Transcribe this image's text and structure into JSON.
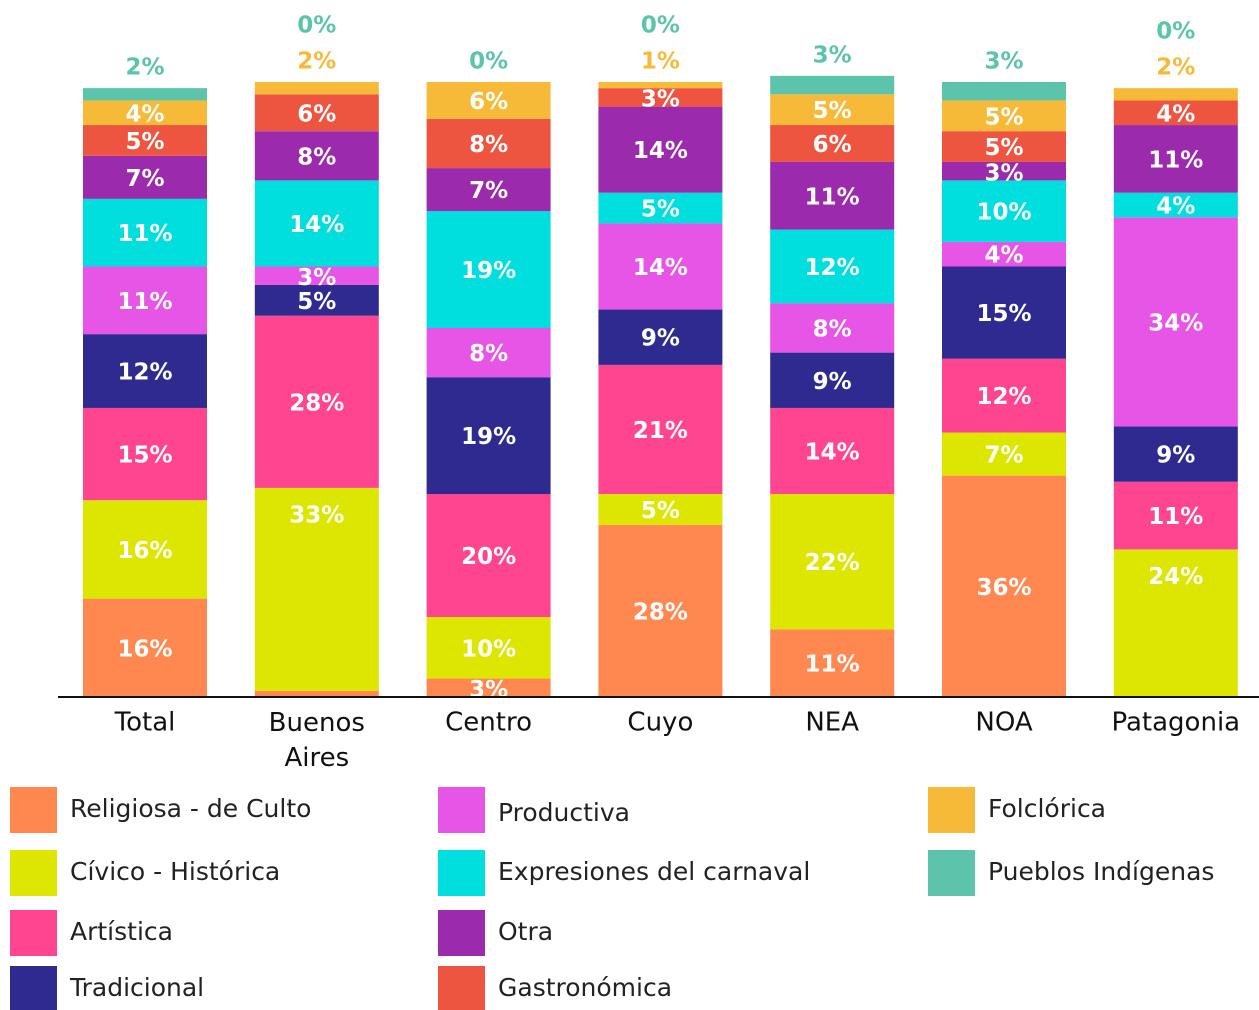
{
  "chart_data": {
    "type": "stacked_bar",
    "categories": [
      "Total",
      "Buenos Aires",
      "Centro",
      "Cuyo",
      "NEA",
      "NOA",
      "Patagonia"
    ],
    "ylim": [
      0,
      100
    ],
    "series": [
      {
        "name": "Religiosa - de Culto",
        "color": "#ff8850",
        "values": [
          16,
          1,
          3,
          28,
          11,
          36,
          0
        ],
        "value_labels": [
          "16%",
          "1%",
          "3%",
          "28%",
          "11%",
          "36%",
          "0%"
        ]
      },
      {
        "name": "Cívico - Histórica",
        "color": "#dde600",
        "values": [
          16,
          33,
          10,
          5,
          22,
          7,
          24
        ],
        "value_labels": [
          "16%",
          "33%",
          "10%",
          "5%",
          "22%",
          "7%",
          "24%"
        ]
      },
      {
        "name": "Artística",
        "color": "#ff4490",
        "values": [
          15,
          28,
          20,
          21,
          14,
          12,
          11
        ],
        "value_labels": [
          "15%",
          "28%",
          "20%",
          "21%",
          "14%",
          "12%",
          "11%"
        ]
      },
      {
        "name": "Tradicional",
        "color": "#2e2a8f",
        "values": [
          12,
          5,
          19,
          9,
          9,
          15,
          9
        ],
        "value_labels": [
          "12%",
          "5%",
          "19%",
          "9%",
          "9%",
          "15%",
          "9%"
        ]
      },
      {
        "name": "Productiva",
        "color": "#e655e6",
        "values": [
          11,
          3,
          8,
          14,
          8,
          4,
          34
        ],
        "value_labels": [
          "11%",
          "3%",
          "8%",
          "14%",
          "8%",
          "4%",
          "34%"
        ]
      },
      {
        "name": "Expresiones del carnaval",
        "color": "#00dede",
        "values": [
          11,
          14,
          19,
          5,
          12,
          10,
          4
        ],
        "value_labels": [
          "11%",
          "14%",
          "19%",
          "5%",
          "12%",
          "10%",
          "4%"
        ]
      },
      {
        "name": "Otra",
        "color": "#9b2aad",
        "values": [
          7,
          8,
          7,
          14,
          11,
          3,
          11
        ],
        "value_labels": [
          "7%",
          "8%",
          "7%",
          "14%",
          "11%",
          "3%",
          "11%"
        ]
      },
      {
        "name": "Gastronómica",
        "color": "#ee5540",
        "values": [
          5,
          6,
          8,
          3,
          6,
          5,
          4
        ],
        "value_labels": [
          "5%",
          "6%",
          "8%",
          "3%",
          "6%",
          "5%",
          "4%"
        ]
      },
      {
        "name": "Folclórica",
        "color": "#f7b938",
        "values": [
          4,
          2,
          6,
          1,
          5,
          5,
          2
        ],
        "value_labels": [
          "4%",
          "2%",
          "6%",
          "1%",
          "5%",
          "5%",
          "2%"
        ]
      },
      {
        "name": "Pueblos Indígenas",
        "color": "#5bc4aa",
        "values": [
          2,
          0,
          0,
          0,
          3,
          3,
          0
        ],
        "value_labels": [
          "2%",
          "0%",
          "0%",
          "0%",
          "3%",
          "3%",
          "0%"
        ]
      }
    ]
  }
}
